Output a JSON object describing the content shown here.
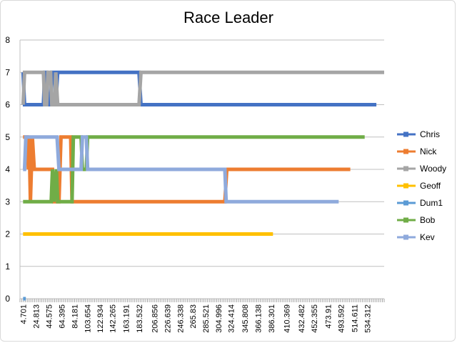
{
  "chart_data": {
    "type": "line",
    "title": "Race Leader",
    "xlabel": "",
    "ylabel": "",
    "ylim": [
      0,
      8
    ],
    "yticks": [
      0,
      1,
      2,
      3,
      4,
      5,
      6,
      7,
      8
    ],
    "xlim": [
      0,
      560
    ],
    "xtick_labels": [
      "4.701",
      "24.813",
      "44.575",
      "64.395",
      "84.181",
      "103.654",
      "122.934",
      "142.265",
      "163.191",
      "183.532",
      "206.856",
      "226.639",
      "246.338",
      "265.83",
      "285.521",
      "304.996",
      "324.414",
      "345.808",
      "366.138",
      "386.301",
      "410.369",
      "432.482",
      "452.355",
      "473.91",
      "493.592",
      "514.611",
      "534.312"
    ],
    "grid": true,
    "legend": "right",
    "series": [
      {
        "name": "Chris",
        "color": "#4472C4",
        "points": [
          [
            4.701,
            7
          ],
          [
            7,
            6
          ],
          [
            36,
            6
          ],
          [
            38,
            7
          ],
          [
            41,
            7
          ],
          [
            43,
            6
          ],
          [
            47,
            6
          ],
          [
            49,
            7
          ],
          [
            53,
            7
          ],
          [
            55,
            6
          ],
          [
            58,
            7
          ],
          [
            183,
            7
          ],
          [
            186,
            6
          ],
          [
            548,
            6
          ]
        ]
      },
      {
        "name": "Nick",
        "color": "#ED7D31",
        "points": [
          [
            4.701,
            5
          ],
          [
            11,
            5
          ],
          [
            13,
            4
          ],
          [
            14,
            5
          ],
          [
            16,
            3
          ],
          [
            19,
            5
          ],
          [
            22,
            4
          ],
          [
            50,
            4
          ],
          [
            52,
            3
          ],
          [
            60,
            3
          ],
          [
            63,
            5
          ],
          [
            78,
            5
          ],
          [
            80,
            3
          ],
          [
            315,
            3
          ],
          [
            318,
            4
          ],
          [
            508,
            4
          ]
        ]
      },
      {
        "name": "Woody",
        "color": "#A5A5A5",
        "points": [
          [
            4.701,
            6
          ],
          [
            7,
            7
          ],
          [
            36,
            7
          ],
          [
            38,
            6
          ],
          [
            41,
            6
          ],
          [
            43,
            7
          ],
          [
            47,
            7
          ],
          [
            49,
            6
          ],
          [
            53,
            6
          ],
          [
            55,
            7
          ],
          [
            58,
            6
          ],
          [
            183,
            6
          ],
          [
            186,
            7
          ],
          [
            560,
            7
          ]
        ]
      },
      {
        "name": "Geoff",
        "color": "#FFC000",
        "points": [
          [
            4.701,
            2
          ],
          [
            389,
            2
          ]
        ]
      },
      {
        "name": "Dum1",
        "color": "#5B9BD5",
        "points": [
          [
            4.701,
            0
          ],
          [
            9,
            0
          ]
        ]
      },
      {
        "name": "Bob",
        "color": "#70AD47",
        "points": [
          [
            4.701,
            3
          ],
          [
            48,
            3
          ],
          [
            50,
            4
          ],
          [
            52,
            3
          ],
          [
            56,
            4
          ],
          [
            58,
            3
          ],
          [
            80,
            3
          ],
          [
            82,
            5
          ],
          [
            94,
            5
          ],
          [
            96,
            4
          ],
          [
            102,
            4
          ],
          [
            104,
            5
          ],
          [
            530,
            5
          ]
        ]
      },
      {
        "name": "Kev",
        "color": "#8FAADC",
        "points": [
          [
            4.701,
            4
          ],
          [
            7,
            4
          ],
          [
            9,
            5
          ],
          [
            57,
            5
          ],
          [
            60,
            4
          ],
          [
            94,
            4
          ],
          [
            96,
            5
          ],
          [
            102,
            5
          ],
          [
            104,
            4
          ],
          [
            315,
            4
          ],
          [
            317,
            3
          ],
          [
            490,
            3
          ]
        ]
      }
    ]
  }
}
